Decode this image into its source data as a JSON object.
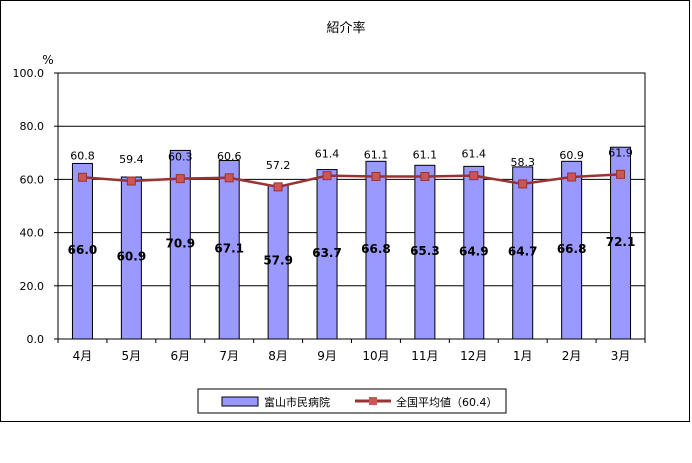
{
  "chart_data": {
    "type": "bar",
    "title": "紹介率",
    "ylabel": "%",
    "xlabel": "",
    "ylim": [
      0,
      100
    ],
    "yticks": [
      "0.0",
      "20.0",
      "40.0",
      "60.0",
      "80.0",
      "100.0"
    ],
    "categories": [
      "4月",
      "5月",
      "6月",
      "7月",
      "8月",
      "9月",
      "10月",
      "11月",
      "12月",
      "1月",
      "2月",
      "3月"
    ],
    "series": [
      {
        "name": "富山市民病院",
        "type": "bar",
        "values": [
          66.0,
          60.9,
          70.9,
          67.1,
          57.9,
          63.7,
          66.8,
          65.3,
          64.9,
          64.7,
          66.8,
          72.1
        ],
        "labels": [
          "66.0",
          "60.9",
          "70.9",
          "67.1",
          "57.9",
          "63.7",
          "66.8",
          "65.3",
          "64.9",
          "64.7",
          "66.8",
          "72.1"
        ],
        "color": "#9999ff"
      },
      {
        "name": "全国平均値（60.4）",
        "type": "line",
        "values": [
          60.8,
          59.4,
          60.3,
          60.6,
          57.2,
          61.4,
          61.1,
          61.1,
          61.4,
          58.3,
          60.9,
          61.9
        ],
        "labels": [
          "60.8",
          "59.4",
          "60.3",
          "60.6",
          "57.2",
          "61.4",
          "61.1",
          "61.1",
          "61.4",
          "58.3",
          "60.9",
          "61.9"
        ],
        "color": "#993333"
      }
    ],
    "grid": true,
    "legend": "bottom"
  }
}
